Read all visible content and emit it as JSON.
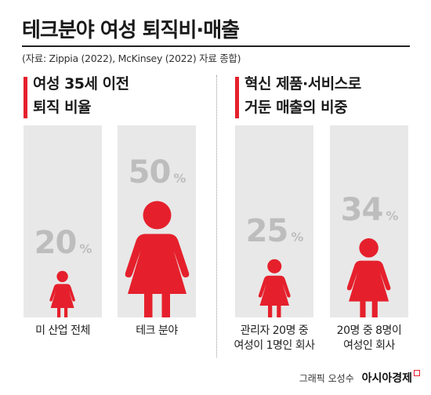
{
  "title": "테크분야 여성 퇴직비·매출",
  "source": "(자료: Zippia (2022), McKinsey (2022) 자료 종합)",
  "sections": [
    {
      "heading_line1": "여성 35세 이전",
      "heading_line2": "퇴직 비율"
    },
    {
      "heading_line1": "혁신 제품·서비스로",
      "heading_line2": "거둔 매출의 비중"
    }
  ],
  "credit": {
    "byline": "그래픽 오성수",
    "brand": "아시아경제"
  },
  "colors": {
    "accent": "#e5202c",
    "column_bg": "#e8e8e8",
    "value_text": "#bdbdbd"
  },
  "icon": "woman-figure-icon",
  "chart_data": [
    {
      "type": "bar",
      "title": "여성 35세 이전 퇴직 비율",
      "categories": [
        "미 산업 전체",
        "테크 분야"
      ],
      "values": [
        20,
        50
      ],
      "unit": "%",
      "value_labels": [
        "20",
        "50"
      ],
      "ylim": [
        0,
        100
      ]
    },
    {
      "type": "bar",
      "title": "혁신 제품·서비스로 거둔 매출의 비중",
      "categories": [
        "관리자 20명 중 여성이 1명인 회사",
        "20명 중 8명이 여성인 회사"
      ],
      "category_lines": [
        [
          "관리자 20명 중",
          "여성이 1명인 회사"
        ],
        [
          "20명 중 8명이",
          "여성인 회사"
        ]
      ],
      "values": [
        25,
        34
      ],
      "unit": "%",
      "value_labels": [
        "25",
        "34"
      ],
      "ylim": [
        0,
        100
      ]
    }
  ]
}
